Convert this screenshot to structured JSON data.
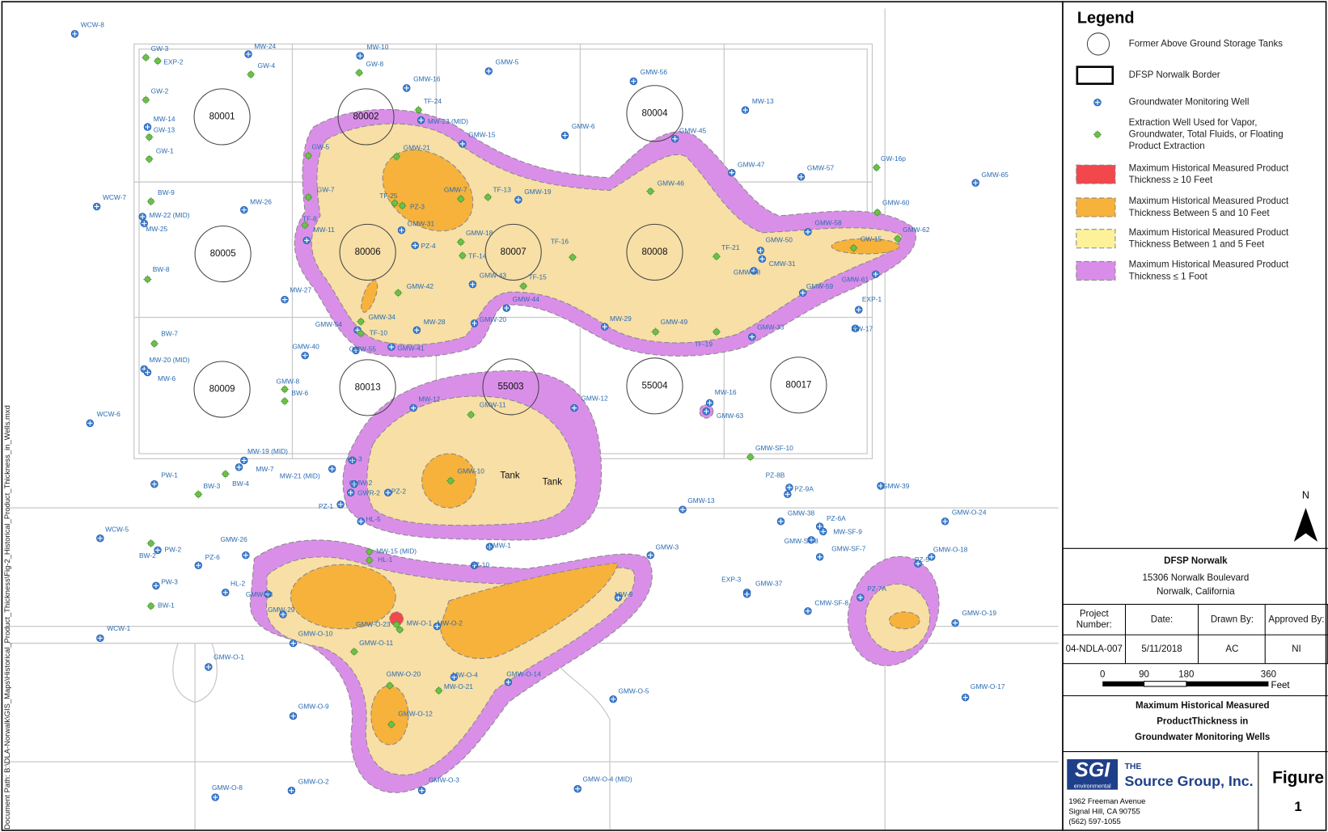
{
  "map": {
    "side_note": "Document Path: B:\\DLA-Norwalk\\GIS_Maps\\Historical_Product_Thickness\\Fig-2_Historical_Product_Thickness_in_Wells.mxd",
    "tanks": [
      "80001",
      "80002",
      "80004",
      "80005",
      "80006",
      "80007",
      "80008",
      "80009",
      "80013",
      "55003",
      "55004",
      "80017"
    ],
    "tank_labels": [
      "Tank",
      "Tank"
    ],
    "wells": [
      "WCW-8",
      "GW-3",
      "EXP-2",
      "MW-24",
      "GW-4",
      "MW-10",
      "GW-8",
      "GMW-5",
      "GMW-16",
      "GMW-56",
      "GW-2",
      "TF-24",
      "MW-23 (MID)",
      "MW-13",
      "MW-14",
      "GW-13",
      "GMW-15",
      "GMW-6",
      "GMW-45",
      "GW-1",
      "GW-5",
      "GMW-21",
      "GMW-47",
      "GMW-57",
      "GW-16p",
      "GMW-65",
      "GW-7",
      "TF-25",
      "PZ-3",
      "GMW-7",
      "TF-13",
      "GMW-19",
      "GMW-46",
      "BW-9",
      "WCW-7",
      "MW-26",
      "MW-22 (MID)",
      "GMW-60",
      "MW-25",
      "TF-8",
      "MW-11",
      "GMW-31",
      "GMW-18",
      "GMW-58",
      "GMW-62",
      "GW-15",
      "PZ-4",
      "TF-16",
      "TF-14",
      "GMW-50",
      "TF-21",
      "CMW-31",
      "BW-8",
      "GMW-48",
      "GMW-43",
      "TF-15",
      "GMW-61",
      "MW-27",
      "GMW-42",
      "GMW-44",
      "GMW-59",
      "EXP-1",
      "GMW-34",
      "MW-28",
      "GMW-20",
      "MW-29",
      "GMW-49",
      "GMW-33",
      "MW-17",
      "GMW-54",
      "TF-10",
      "BW-7",
      "GMW-55",
      "GMW-41",
      "TF-19",
      "GMW-40",
      "MW-20 (MID)",
      "MW-6",
      "GMW-8",
      "BW-6",
      "MW-12",
      "GMW-11",
      "GMW-12",
      "MW-16",
      "GMW-63",
      "WCW-6",
      "GMW-SF-10",
      "MW-19 (MID)",
      "HL-3",
      "MW-7",
      "MW-21 (MID)",
      "PW-1",
      "BW-3",
      "BW-4",
      "GMW-2",
      "GMW-10",
      "PZ-8B",
      "PZ-9A",
      "GMW-39",
      "PZ-2",
      "GWR-2",
      "PZ-1",
      "GMW-13",
      "HL-5",
      "GMW-38",
      "PZ-6A",
      "MW-SF-9",
      "GMW-O-24",
      "WCW-5",
      "GMW-26",
      "GMW-SF-8",
      "GMW-1",
      "BW-2",
      "PW-2",
      "GMW-3",
      "GMW-SF-7",
      "GMW-O-18",
      "MW-15 (MID)",
      "HL-1",
      "PZ-6",
      "PZ-5",
      "PZ-10",
      "EXP-3",
      "GMW-37",
      "PW-3",
      "HL-2",
      "GMW-28",
      "PZ-7A",
      "MW-9",
      "BW-1",
      "CMW-SF-8",
      "GMW-29",
      "GMW-O-23",
      "MW-O-1",
      "MW-O-2",
      "GMW-O-19",
      "WCW-1",
      "GMW-O-10",
      "GMW-O-11",
      "GMW-O-1",
      "GMW-O-20",
      "GMW-O-14",
      "MW-O-21",
      "MW-O-4",
      "GMW-O-17",
      "GMW-O-5",
      "GMW-O-9",
      "GMW-O-12",
      "GMW-O-2",
      "GMW-O-3",
      "GMW-O-4 (MID)",
      "GMW-O-8"
    ]
  },
  "legend": {
    "title": "Legend",
    "items": [
      [
        "Former Above Ground Storage Tanks"
      ],
      [
        "DFSP Norwalk Border"
      ],
      [
        "Groundwater Monitoring Well"
      ],
      [
        "Extraction Well Used for Vapor,",
        "Groundwater, Total Fluids, or Floating",
        "Product Extraction"
      ],
      [
        "Maximum Historical Measured Product",
        "Thickness ≥ 10 Feet"
      ],
      [
        "Maximum Historical Measured Product",
        "Thickness Between 5 and 10 Feet"
      ],
      [
        "Maximum Historical Measured Product",
        "Thickness Between 1 and 5 Feet"
      ],
      [
        "Maximum Historical Measured Product",
        "Thickness ≤ 1 Foot"
      ]
    ]
  },
  "north": "N",
  "title_block": {
    "facility": [
      "DFSP Norwalk",
      "15306 Norwalk Boulevard",
      "Norwalk, California"
    ],
    "table": {
      "headers": [
        [
          "Project",
          "Number:"
        ],
        [
          "Date:"
        ],
        [
          "Drawn By:"
        ],
        [
          "Approved By:"
        ]
      ],
      "values": [
        "04-NDLA-007",
        "5/11/2018",
        "AC",
        "NI"
      ]
    },
    "scale_bar": {
      "labels": [
        "0",
        "90",
        "180",
        "360"
      ],
      "unit": "Feet"
    },
    "title": [
      "Maximum Historical Measured",
      "ProductThickness in",
      "Groundwater Monitoring Wells"
    ],
    "logo": {
      "mark": "SGI",
      "mark_sub": "environmental",
      "company_prefix": "THE",
      "company": "Source Group, Inc.",
      "address": [
        "1962 Freeman Avenue",
        "Signal Hill, CA 90755",
        "(562) 597-1055"
      ]
    },
    "figure": {
      "label": "Figure",
      "number": "1"
    }
  }
}
